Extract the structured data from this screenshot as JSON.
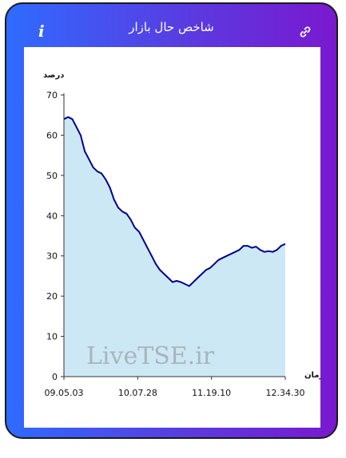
{
  "header": {
    "title": "شاخص حال بازار",
    "info_icon": "info-icon",
    "link_icon": "link-icon"
  },
  "watermark": "LiveTSE.ir",
  "chart_data": {
    "type": "area",
    "ylabel": "درصد",
    "xlabel": "زمان",
    "ylim": [
      0,
      70
    ],
    "yticks": [
      0,
      10,
      20,
      30,
      40,
      50,
      60,
      70
    ],
    "xtick_labels": [
      "09.05.03",
      "10.07.28",
      "11.19.10",
      "12.34.30"
    ],
    "series": [
      {
        "fill_color": "#cce8f4",
        "line_color": "#00008b",
        "points": [
          [
            0,
            64
          ],
          [
            1,
            64.5
          ],
          [
            2,
            64
          ],
          [
            3,
            62
          ],
          [
            4,
            60
          ],
          [
            5,
            56
          ],
          [
            6,
            54
          ],
          [
            7,
            52
          ],
          [
            8,
            51
          ],
          [
            9,
            50.5
          ],
          [
            10,
            49
          ],
          [
            11,
            47
          ],
          [
            12,
            44
          ],
          [
            13,
            42
          ],
          [
            14,
            41
          ],
          [
            15,
            40.5
          ],
          [
            16,
            39
          ],
          [
            17,
            37
          ],
          [
            18,
            36
          ],
          [
            19,
            34
          ],
          [
            20,
            32
          ],
          [
            21,
            30
          ],
          [
            22,
            28
          ],
          [
            23,
            26.5
          ],
          [
            24,
            25.5
          ],
          [
            25,
            24.5
          ],
          [
            26,
            23.5
          ],
          [
            27,
            23.8
          ],
          [
            28,
            23.5
          ],
          [
            29,
            23
          ],
          [
            30,
            22.5
          ],
          [
            31,
            23.5
          ],
          [
            32,
            24.5
          ],
          [
            33,
            25.5
          ],
          [
            34,
            26.5
          ],
          [
            35,
            27
          ],
          [
            36,
            28
          ],
          [
            37,
            29
          ],
          [
            38,
            29.5
          ],
          [
            39,
            30
          ],
          [
            40,
            30.5
          ],
          [
            41,
            31
          ],
          [
            42,
            31.5
          ],
          [
            43,
            32.5
          ],
          [
            44,
            32.5
          ],
          [
            45,
            32
          ],
          [
            46,
            32.3
          ],
          [
            47,
            31.5
          ],
          [
            48,
            31
          ],
          [
            49,
            31.2
          ],
          [
            50,
            31
          ],
          [
            51,
            31.5
          ],
          [
            52,
            32.5
          ],
          [
            53,
            33
          ]
        ]
      }
    ]
  }
}
